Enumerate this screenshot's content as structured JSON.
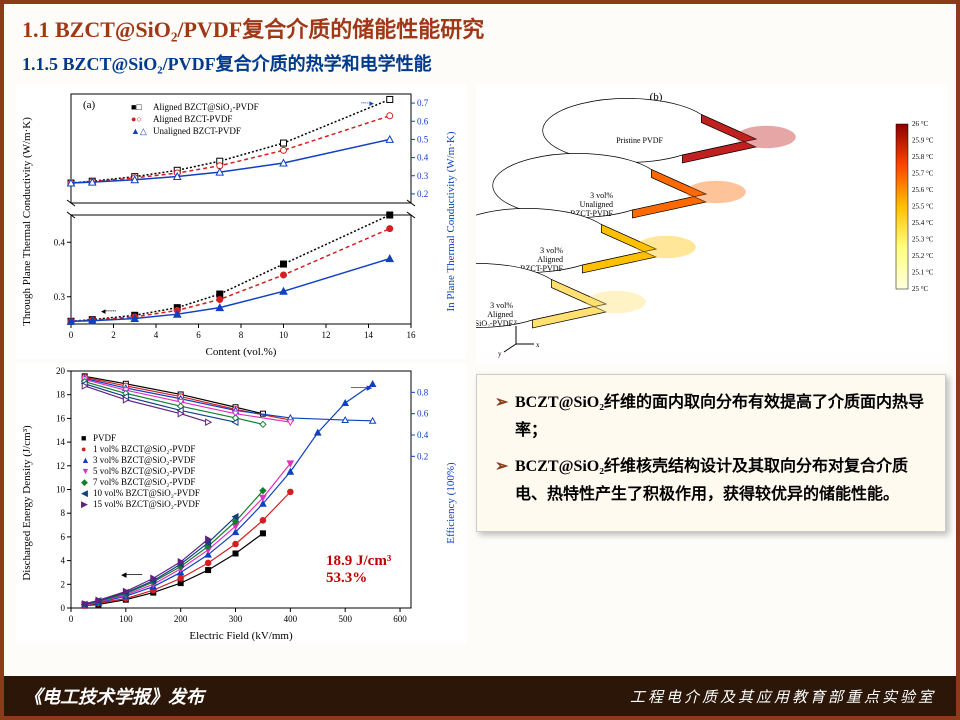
{
  "title_main": "1.1 BZCT@SiO₂/PVDF复合介质的储能性能研究",
  "title_sub": "1.1.5 BZCT@SiO₂/PVDF复合介质的热学和电学性能",
  "footer": {
    "left": "《电工技术学报》发布",
    "right": "工程电介质及其应用教育部重点实验室"
  },
  "chart_a": {
    "label": "(a)",
    "xlabel": "Content (vol.%)",
    "ylabel_left": "Through Plane Thermal Conductivity (W/m·K)",
    "ylabel_right": "In Plane Thermal Conductivity (W/m·K)",
    "xlim": [
      0,
      16
    ],
    "xticks": [
      0,
      2,
      4,
      6,
      8,
      10,
      12,
      14,
      16
    ],
    "ylim_left_bottom": [
      0.25,
      0.45
    ],
    "yticks_left_bottom": [
      0.3,
      0.4
    ],
    "ylim_right_top": [
      0.15,
      0.75
    ],
    "yticks_right_top": [
      0.2,
      0.3,
      0.4,
      0.5,
      0.6,
      0.7
    ],
    "series_colors": {
      "aligned_sio2": "#000000",
      "aligned_bzct": "#d22020",
      "unaligned": "#1040c0"
    },
    "legend": [
      {
        "sym": "■□",
        "label": "Aligned BZCT@SiO₂-PVDF",
        "color": "#000000"
      },
      {
        "sym": "●○",
        "label": "Aligned BZCT-PVDF",
        "color": "#d22020"
      },
      {
        "sym": "▲△",
        "label": "Unaligned BZCT-PVDF",
        "color": "#1040c0"
      }
    ],
    "through_plane": {
      "aligned_sio2": [
        [
          0,
          0.255
        ],
        [
          1,
          0.258
        ],
        [
          3,
          0.266
        ],
        [
          5,
          0.28
        ],
        [
          7,
          0.305
        ],
        [
          10,
          0.36
        ],
        [
          15,
          0.45
        ]
      ],
      "aligned_bzct": [
        [
          0,
          0.255
        ],
        [
          1,
          0.257
        ],
        [
          3,
          0.263
        ],
        [
          5,
          0.275
        ],
        [
          7,
          0.295
        ],
        [
          10,
          0.34
        ],
        [
          15,
          0.425
        ]
      ],
      "unaligned": [
        [
          0,
          0.255
        ],
        [
          1,
          0.256
        ],
        [
          3,
          0.26
        ],
        [
          5,
          0.268
        ],
        [
          7,
          0.28
        ],
        [
          10,
          0.31
        ],
        [
          15,
          0.37
        ]
      ]
    },
    "in_plane": {
      "aligned_sio2": [
        [
          0,
          0.26
        ],
        [
          1,
          0.27
        ],
        [
          3,
          0.295
        ],
        [
          5,
          0.33
        ],
        [
          7,
          0.38
        ],
        [
          10,
          0.48
        ],
        [
          15,
          0.72
        ]
      ],
      "aligned_bzct": [
        [
          0,
          0.26
        ],
        [
          1,
          0.268
        ],
        [
          3,
          0.288
        ],
        [
          5,
          0.315
        ],
        [
          7,
          0.355
        ],
        [
          10,
          0.44
        ],
        [
          15,
          0.63
        ]
      ],
      "unaligned": [
        [
          0,
          0.26
        ],
        [
          1,
          0.265
        ],
        [
          3,
          0.278
        ],
        [
          5,
          0.296
        ],
        [
          7,
          0.32
        ],
        [
          10,
          0.37
        ],
        [
          15,
          0.5
        ]
      ]
    }
  },
  "chart_c": {
    "xlabel": "Electric Field (kV/mm)",
    "ylabel_left": "Discharged Energy Density (J/cm³)",
    "ylabel_right": "Efficiency (100%)",
    "xlim": [
      0,
      620
    ],
    "xticks": [
      0,
      100,
      200,
      300,
      400,
      500,
      600
    ],
    "ylim_left": [
      0,
      20
    ],
    "yticks_left": [
      0,
      2,
      4,
      6,
      8,
      10,
      12,
      14,
      16,
      18,
      20
    ],
    "ylim_right": [
      0,
      1.0
    ],
    "yticks_right": [
      0.2,
      0.4,
      0.6,
      0.8
    ],
    "annotation": {
      "line1": "18.9 J/cm³",
      "line2": "53.3%"
    },
    "legend": [
      {
        "sym": "■",
        "label": "PVDF",
        "color": "#000000"
      },
      {
        "sym": "●",
        "label": "1 vol% BZCT@SiO₂-PVDF",
        "color": "#d22020"
      },
      {
        "sym": "▲",
        "label": "3 vol% BZCT@SiO₂-PVDF",
        "color": "#1040c0"
      },
      {
        "sym": "▼",
        "label": "5 vol% BZCT@SiO₂-PVDF",
        "color": "#e030c0"
      },
      {
        "sym": "◆",
        "label": "7 vol% BZCT@SiO₂-PVDF",
        "color": "#108030"
      },
      {
        "sym": "◀",
        "label": "10 vol% BZCT@SiO₂-PVDF",
        "color": "#104080"
      },
      {
        "sym": "▶",
        "label": "15 vol% BZCT@SiO₂-PVDF",
        "color": "#602080"
      }
    ],
    "energy": {
      "PVDF": [
        [
          25,
          0.2
        ],
        [
          50,
          0.3
        ],
        [
          100,
          0.7
        ],
        [
          150,
          1.3
        ],
        [
          200,
          2.1
        ],
        [
          250,
          3.2
        ],
        [
          300,
          4.6
        ],
        [
          350,
          6.3
        ]
      ],
      "1vol": [
        [
          25,
          0.2
        ],
        [
          50,
          0.4
        ],
        [
          100,
          0.8
        ],
        [
          150,
          1.5
        ],
        [
          200,
          2.5
        ],
        [
          250,
          3.8
        ],
        [
          300,
          5.4
        ],
        [
          350,
          7.4
        ],
        [
          400,
          9.8
        ]
      ],
      "3vol": [
        [
          25,
          0.25
        ],
        [
          50,
          0.45
        ],
        [
          100,
          1.0
        ],
        [
          150,
          1.8
        ],
        [
          200,
          3.0
        ],
        [
          250,
          4.5
        ],
        [
          300,
          6.4
        ],
        [
          350,
          8.8
        ],
        [
          400,
          11.5
        ],
        [
          450,
          14.8
        ],
        [
          500,
          17.3
        ],
        [
          550,
          18.9
        ]
      ],
      "5vol": [
        [
          25,
          0.25
        ],
        [
          50,
          0.5
        ],
        [
          100,
          1.1
        ],
        [
          150,
          2.0
        ],
        [
          200,
          3.3
        ],
        [
          250,
          4.9
        ],
        [
          300,
          6.9
        ],
        [
          350,
          9.3
        ],
        [
          400,
          12.2
        ]
      ],
      "7vol": [
        [
          25,
          0.3
        ],
        [
          50,
          0.55
        ],
        [
          100,
          1.2
        ],
        [
          150,
          2.2
        ],
        [
          200,
          3.5
        ],
        [
          250,
          5.2
        ],
        [
          300,
          7.3
        ],
        [
          350,
          9.9
        ]
      ],
      "10vol": [
        [
          25,
          0.3
        ],
        [
          50,
          0.6
        ],
        [
          100,
          1.3
        ],
        [
          150,
          2.3
        ],
        [
          200,
          3.7
        ],
        [
          250,
          5.5
        ],
        [
          300,
          7.7
        ]
      ],
      "15vol": [
        [
          25,
          0.35
        ],
        [
          50,
          0.65
        ],
        [
          100,
          1.4
        ],
        [
          150,
          2.5
        ],
        [
          200,
          3.9
        ],
        [
          250,
          5.8
        ]
      ]
    },
    "efficiency": {
      "PVDF": [
        [
          25,
          0.95
        ],
        [
          100,
          0.88
        ],
        [
          200,
          0.78
        ],
        [
          300,
          0.66
        ],
        [
          350,
          0.6
        ]
      ],
      "1vol": [
        [
          25,
          0.94
        ],
        [
          100,
          0.86
        ],
        [
          200,
          0.76
        ],
        [
          300,
          0.64
        ],
        [
          400,
          0.54
        ]
      ],
      "3vol": [
        [
          25,
          0.93
        ],
        [
          100,
          0.84
        ],
        [
          200,
          0.74
        ],
        [
          300,
          0.63
        ],
        [
          400,
          0.56
        ],
        [
          500,
          0.54
        ],
        [
          550,
          0.533
        ]
      ],
      "5vol": [
        [
          25,
          0.92
        ],
        [
          100,
          0.82
        ],
        [
          200,
          0.71
        ],
        [
          300,
          0.6
        ],
        [
          400,
          0.52
        ]
      ],
      "7vol": [
        [
          25,
          0.9
        ],
        [
          100,
          0.79
        ],
        [
          200,
          0.67
        ],
        [
          300,
          0.56
        ],
        [
          350,
          0.5
        ]
      ],
      "10vol": [
        [
          25,
          0.88
        ],
        [
          100,
          0.76
        ],
        [
          200,
          0.63
        ],
        [
          300,
          0.52
        ]
      ],
      "15vol": [
        [
          25,
          0.86
        ],
        [
          100,
          0.73
        ],
        [
          200,
          0.6
        ],
        [
          250,
          0.52
        ]
      ]
    },
    "colors": {
      "PVDF": "#000000",
      "1vol": "#d22020",
      "3vol": "#1040c0",
      "5vol": "#e030c0",
      "7vol": "#108030",
      "10vol": "#104080",
      "15vol": "#602080"
    }
  },
  "schematic": {
    "label": "(b)",
    "discs": [
      {
        "name": "Pristine PVDF"
      },
      {
        "name": "3 vol% Unaligned BZCT-PVDF"
      },
      {
        "name": "3 vol% Aligned BZCT-PVDF"
      },
      {
        "name": "3 vol% Aligned BZCT@SiO₂-PVDF"
      }
    ],
    "colorbar": {
      "max": "26 °C",
      "min": "25 °C",
      "ticks": [
        "25.9 °C",
        "25.8 °C",
        "25.7 °C",
        "25.6 °C",
        "25.5 °C",
        "25.4 °C",
        "25.3 °C",
        "25.2 °C",
        "25.1 °C"
      ]
    }
  },
  "callout": [
    "BCZT@SiO₂纤维的面内取向分布有效提高了介质面内热导率；",
    "BCZT@SiO₂纤维核壳结构设计及其取向分布对复合介质电、热特性产生了积极作用，获得较优异的储能性能。"
  ]
}
